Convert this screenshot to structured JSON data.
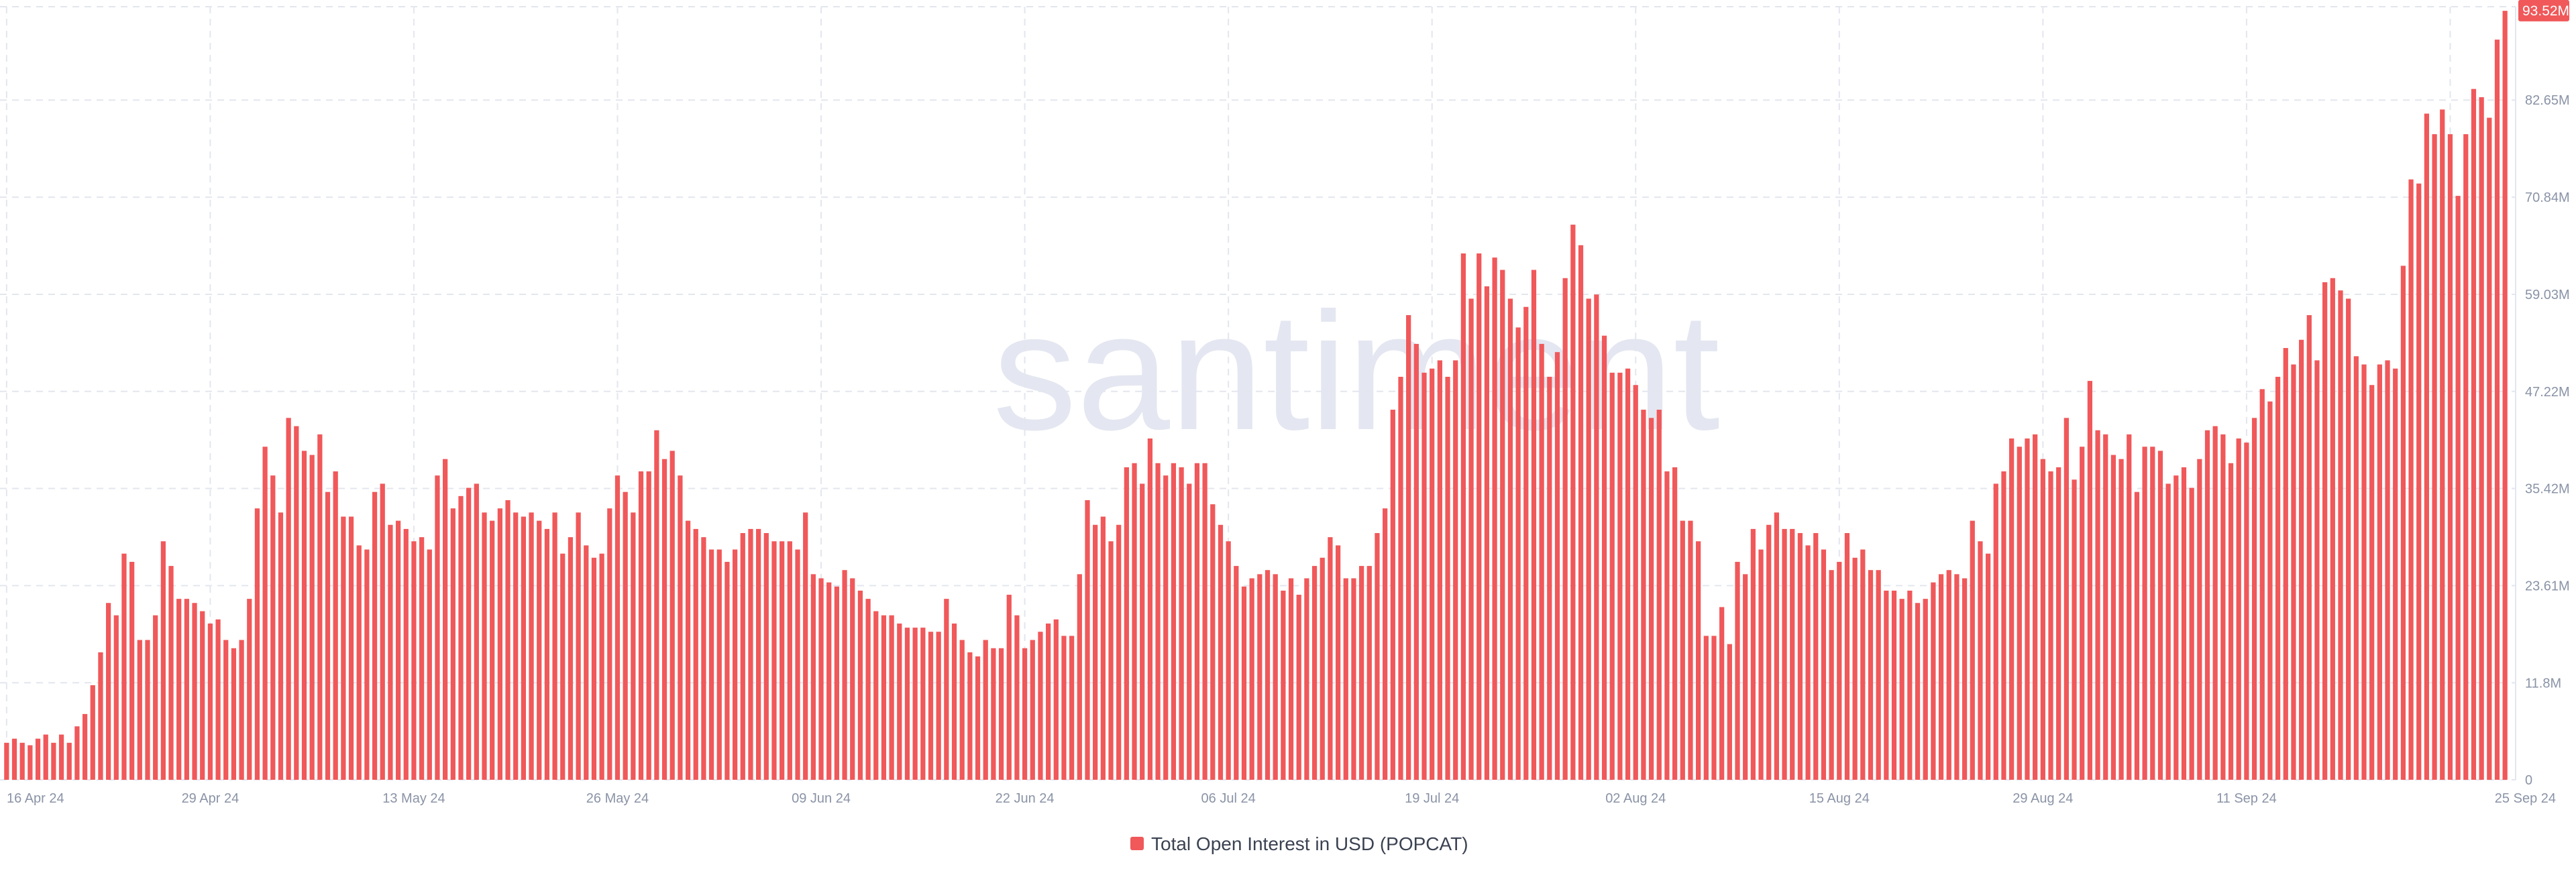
{
  "watermark": "santiment",
  "chart_data": {
    "type": "bar",
    "title": "",
    "xlabel": "",
    "ylabel": "",
    "legend": {
      "position": "bottom-center",
      "label": "Total Open Interest in USD (POPCAT)",
      "color": "#f0585a"
    },
    "colors": {
      "bar": "#f0585a",
      "grid": "#e3e6ee",
      "axis_text": "#8a93a6",
      "latest_badge": "#f0585a"
    },
    "ylim": [
      0,
      94
    ],
    "y_unit": "M",
    "y_ticks": [
      "0",
      "11.8M",
      "23.61M",
      "35.42M",
      "47.22M",
      "59.03M",
      "70.84M",
      "82.65M"
    ],
    "y_tick_values": [
      0,
      11.8,
      23.61,
      35.42,
      47.22,
      59.03,
      70.84,
      82.65
    ],
    "latest_value_label": "93.52M",
    "latest_value": 93.52,
    "x_ticks": [
      "16 Apr 24",
      "29 Apr 24",
      "13 May 24",
      "26 May 24",
      "09 Jun 24",
      "22 Jun 24",
      "06 Jul 24",
      "19 Jul 24",
      "02 Aug 24",
      "15 Aug 24",
      "29 Aug 24",
      "11 Sep 24",
      "25 Sep 24"
    ],
    "x_tick_index": [
      0,
      26,
      52,
      78,
      104,
      130,
      156,
      182,
      208,
      234,
      260,
      286,
      312
    ],
    "series": [
      {
        "name": "Total Open Interest in USD (POPCAT)",
        "values": [
          4.5,
          5,
          4.5,
          4.2,
          5,
          5.5,
          4.5,
          5.5,
          4.5,
          6.5,
          8,
          11.5,
          15.5,
          21.5,
          20,
          27.5,
          26.5,
          17,
          17,
          20,
          29,
          26,
          22,
          22,
          21.5,
          20.5,
          19,
          19.5,
          17,
          16,
          17,
          22,
          33,
          40.5,
          37,
          32.5,
          44,
          43,
          40,
          39.5,
          42,
          35,
          37.5,
          32,
          32,
          28.5,
          28,
          35,
          36,
          31,
          31.5,
          30.5,
          29,
          29.5,
          28,
          37,
          39,
          33,
          34.5,
          35.5,
          36,
          32.5,
          31.5,
          33,
          34,
          32.5,
          32,
          32.5,
          31.5,
          30.5,
          32.5,
          27.5,
          29.5,
          32.5,
          28.5,
          27,
          27.5,
          33,
          37,
          35,
          32.5,
          37.5,
          37.5,
          42.5,
          39,
          40,
          37,
          31.5,
          30.5,
          29.5,
          28,
          28,
          26.5,
          28,
          30,
          30.5,
          30.5,
          30,
          29,
          29,
          29,
          28,
          32.5,
          25,
          24.5,
          24,
          23.5,
          25.5,
          24.5,
          23,
          22,
          20.5,
          20,
          20,
          19,
          18.5,
          18.5,
          18.5,
          18,
          18,
          22,
          19,
          17,
          15.5,
          15,
          17,
          16,
          16,
          22.5,
          20,
          16,
          17,
          18,
          19,
          19.5,
          17.5,
          17.5,
          25,
          34,
          31,
          32,
          29,
          31,
          38,
          38.5,
          36,
          41.5,
          38.5,
          37,
          38.5,
          38,
          36,
          38.5,
          38.5,
          33.5,
          31,
          29,
          26,
          23.5,
          24.5,
          25,
          25.5,
          25,
          23,
          24.5,
          22.5,
          24.5,
          26,
          27,
          29.5,
          28.5,
          24.5,
          24.5,
          26,
          26,
          30,
          33,
          45,
          49,
          56.5,
          53,
          49.5,
          50,
          51,
          49,
          51,
          64,
          58.5,
          64,
          60,
          63.5,
          62,
          58.5,
          55,
          57.5,
          62,
          53,
          49,
          52,
          61,
          67.5,
          65,
          58.5,
          59,
          54,
          49.5,
          49.5,
          50,
          48,
          45,
          44,
          45,
          37.5,
          38,
          31.5,
          31.5,
          29,
          17.5,
          17.5,
          21,
          16.5,
          26.5,
          25,
          30.5,
          28,
          31,
          32.5,
          30.5,
          30.5,
          30,
          28.5,
          30,
          28,
          25.5,
          26.5,
          30,
          27,
          28,
          25.5,
          25.5,
          23,
          23,
          22,
          23,
          21.5,
          22,
          24,
          25,
          25.5,
          25,
          24.5,
          31.5,
          29,
          27.5,
          36,
          37.5,
          41.5,
          40.5,
          41.5,
          42,
          39,
          37.5,
          38,
          44,
          36.5,
          40.5,
          48.5,
          42.5,
          42,
          39.5,
          39,
          42,
          35,
          40.5,
          40.5,
          40,
          36,
          37,
          38,
          35.5,
          39,
          42.5,
          43,
          42,
          38.5,
          41.5,
          41,
          44,
          47.5,
          46,
          49,
          52.5,
          50.5,
          53.5,
          56.5,
          51,
          60.5,
          61,
          59.5,
          58.5,
          51.5,
          50.5,
          48,
          50.5,
          51,
          50,
          62.5,
          73,
          72.5,
          81,
          78.5,
          81.5,
          78.5,
          71,
          78.5,
          84,
          83,
          80.5,
          90,
          93.5
        ]
      }
    ]
  }
}
